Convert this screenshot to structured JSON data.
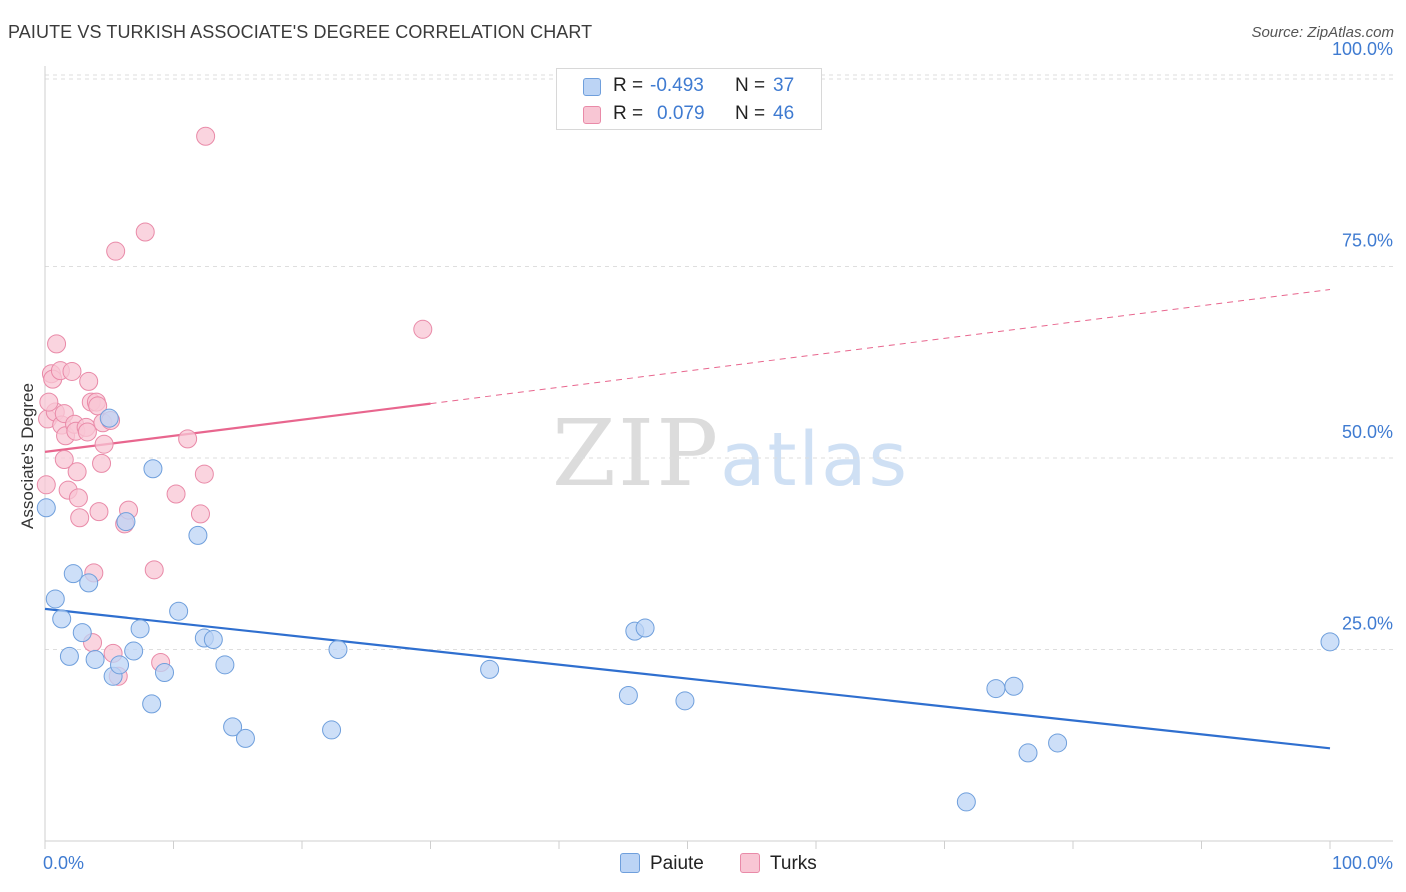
{
  "title": "PAIUTE VS TURKISH ASSOCIATE'S DEGREE CORRELATION CHART",
  "source": "Source: ZipAtlas.com",
  "watermark": {
    "zip": "ZIP",
    "atlas": "atlas"
  },
  "legend_top": {
    "r_label": "R =",
    "n_label": "N =",
    "rows": [
      {
        "series": "Paiute",
        "r": "-0.493",
        "n": "37"
      },
      {
        "series": "Turks",
        "r": "0.079",
        "n": "46"
      }
    ]
  },
  "colors": {
    "paiute_fill": "#bcd4f5",
    "paiute_stroke": "#6f9fdc",
    "paiute_line": "#2f6fcf",
    "turks_fill": "#f8c6d4",
    "turks_stroke": "#e98aa8",
    "turks_line": "#e8668e",
    "axis_text": "#3f7bd1",
    "grid": "#dedede"
  },
  "chart_data": {
    "type": "scatter",
    "title": "PAIUTE VS TURKISH ASSOCIATE'S DEGREE CORRELATION CHART",
    "xlabel": "",
    "ylabel": "Associate's Degree",
    "xlim": [
      0,
      100
    ],
    "ylim": [
      0,
      105
    ],
    "x_tick_labels": [
      "0.0%",
      "100.0%"
    ],
    "y_ticks": [
      25,
      50,
      75,
      100
    ],
    "y_tick_labels": [
      "25.0%",
      "50.0%",
      "75.0%",
      "100.0%"
    ],
    "grid": true,
    "legend_position": "bottom-center",
    "series": [
      {
        "name": "Paiute",
        "points": [
          [
            0.1,
            43.5
          ],
          [
            0.8,
            31.6
          ],
          [
            1.3,
            29.0
          ],
          [
            1.9,
            24.1
          ],
          [
            2.2,
            34.9
          ],
          [
            2.9,
            27.2
          ],
          [
            3.4,
            33.7
          ],
          [
            3.9,
            23.7
          ],
          [
            5.0,
            55.2
          ],
          [
            5.3,
            21.5
          ],
          [
            5.8,
            23.0
          ],
          [
            6.3,
            41.7
          ],
          [
            6.9,
            24.8
          ],
          [
            7.4,
            27.7
          ],
          [
            8.3,
            17.9
          ],
          [
            8.4,
            48.6
          ],
          [
            9.3,
            22.0
          ],
          [
            10.4,
            30.0
          ],
          [
            11.9,
            39.9
          ],
          [
            12.4,
            26.5
          ],
          [
            13.1,
            26.3
          ],
          [
            14.0,
            23.0
          ],
          [
            14.6,
            14.9
          ],
          [
            15.6,
            13.4
          ],
          [
            22.3,
            14.5
          ],
          [
            22.8,
            25.0
          ],
          [
            34.6,
            22.4
          ],
          [
            45.4,
            19.0
          ],
          [
            45.9,
            27.4
          ],
          [
            46.7,
            27.8
          ],
          [
            49.8,
            18.3
          ],
          [
            71.7,
            5.1
          ],
          [
            74.0,
            19.9
          ],
          [
            75.4,
            20.2
          ],
          [
            76.5,
            11.5
          ],
          [
            78.8,
            12.8
          ],
          [
            100.0,
            26.0
          ]
        ]
      },
      {
        "name": "Turks",
        "points": [
          [
            0.1,
            46.5
          ],
          [
            0.2,
            55.1
          ],
          [
            0.5,
            61.0
          ],
          [
            0.6,
            60.3
          ],
          [
            0.8,
            56.0
          ],
          [
            0.9,
            64.9
          ],
          [
            1.2,
            61.4
          ],
          [
            1.3,
            54.3
          ],
          [
            1.5,
            55.8
          ],
          [
            1.5,
            49.8
          ],
          [
            1.6,
            52.9
          ],
          [
            1.8,
            45.8
          ],
          [
            2.1,
            61.3
          ],
          [
            2.3,
            54.4
          ],
          [
            2.4,
            53.5
          ],
          [
            2.5,
            48.2
          ],
          [
            2.6,
            44.8
          ],
          [
            2.7,
            42.2
          ],
          [
            3.2,
            54.0
          ],
          [
            3.3,
            53.4
          ],
          [
            3.4,
            60.0
          ],
          [
            3.6,
            57.3
          ],
          [
            3.7,
            25.9
          ],
          [
            3.8,
            35.0
          ],
          [
            4.0,
            57.3
          ],
          [
            4.1,
            56.8
          ],
          [
            4.2,
            43.0
          ],
          [
            4.4,
            49.3
          ],
          [
            4.5,
            54.6
          ],
          [
            4.6,
            51.8
          ],
          [
            5.1,
            54.9
          ],
          [
            5.3,
            24.5
          ],
          [
            5.5,
            77.0
          ],
          [
            5.7,
            21.5
          ],
          [
            6.2,
            41.4
          ],
          [
            6.5,
            43.2
          ],
          [
            7.8,
            79.5
          ],
          [
            8.5,
            35.4
          ],
          [
            9.0,
            23.3
          ],
          [
            10.2,
            45.3
          ],
          [
            11.1,
            52.5
          ],
          [
            12.1,
            42.7
          ],
          [
            12.4,
            47.9
          ],
          [
            12.5,
            92.0
          ],
          [
            29.4,
            66.8
          ],
          [
            0.3,
            57.3
          ]
        ]
      }
    ],
    "trendlines": [
      {
        "series": "Paiute",
        "x_start": 0,
        "y_start": 30.3,
        "x_end": 100,
        "y_end": 12.1,
        "style": "solid"
      },
      {
        "series": "Turks",
        "x_start": 0,
        "y_start": 50.8,
        "x_end": 30,
        "y_end": 57.1,
        "style": "solid"
      },
      {
        "series": "Turks",
        "x_start": 30,
        "y_start": 57.1,
        "x_end": 100,
        "y_end": 72.0,
        "style": "dashed"
      }
    ]
  }
}
